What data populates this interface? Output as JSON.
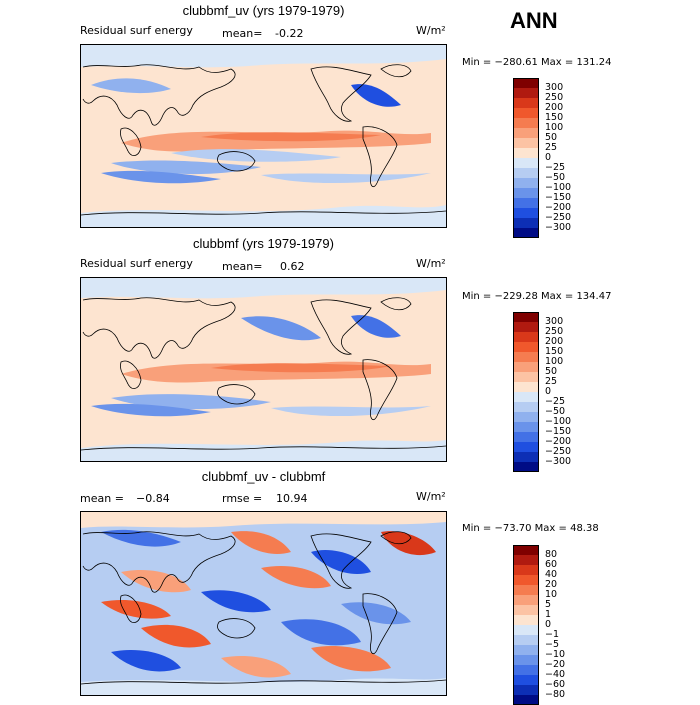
{
  "header": {
    "season": "ANN"
  },
  "panels": [
    {
      "title": "clubbmf_uv (yrs 1979-1979)",
      "label": "Residual surf energy",
      "mean_label": "mean=",
      "mean_value": "-0.22",
      "rmse_label": "",
      "rmse_value": "",
      "units": "W/m²",
      "range_text": "Min = −280.61  Max = 131.24",
      "colorbar_ticks": [
        "300",
        "250",
        "200",
        "150",
        "100",
        "50",
        "25",
        "0",
        "−25",
        "−50",
        "−100",
        "−150",
        "−200",
        "−250",
        "−300"
      ],
      "colors": [
        "#7f0000",
        "#b01a10",
        "#d9381a",
        "#f0582c",
        "#f57c50",
        "#f9a07a",
        "#fcc3a4",
        "#fde4d0",
        "#d9e7f7",
        "#b6cdf2",
        "#90b1ee",
        "#6a93ea",
        "#4371e6",
        "#1f4fe0",
        "#0d2fb5",
        "#000c85"
      ]
    },
    {
      "title": "clubbmf (yrs 1979-1979)",
      "label": "Residual surf energy",
      "mean_label": "mean=",
      "mean_value": "0.62",
      "rmse_label": "",
      "rmse_value": "",
      "units": "W/m²",
      "range_text": "Min = −229.28  Max = 134.47",
      "colorbar_ticks": [
        "300",
        "250",
        "200",
        "150",
        "100",
        "50",
        "25",
        "0",
        "−25",
        "−50",
        "−100",
        "−150",
        "−200",
        "−250",
        "−300"
      ],
      "colors": [
        "#7f0000",
        "#b01a10",
        "#d9381a",
        "#f0582c",
        "#f57c50",
        "#f9a07a",
        "#fcc3a4",
        "#fde4d0",
        "#d9e7f7",
        "#b6cdf2",
        "#90b1ee",
        "#6a93ea",
        "#4371e6",
        "#1f4fe0",
        "#0d2fb5",
        "#000c85"
      ]
    },
    {
      "title": "clubbmf_uv - clubbmf",
      "label": "",
      "mean_label": "mean =",
      "mean_value": "−0.84",
      "rmse_label": "rmse =",
      "rmse_value": "10.94",
      "units": "W/m²",
      "range_text": "Min = −73.70  Max =   48.38",
      "colorbar_ticks": [
        "80",
        "60",
        "40",
        "20",
        "10",
        "5",
        "1",
        "0",
        "−1",
        "−5",
        "−10",
        "−20",
        "−40",
        "−60",
        "−80"
      ],
      "colors": [
        "#7f0000",
        "#b01a10",
        "#d9381a",
        "#f0582c",
        "#f57c50",
        "#f9a07a",
        "#fcc3a4",
        "#fde4d0",
        "#d9e7f7",
        "#b6cdf2",
        "#90b1ee",
        "#6a93ea",
        "#4371e6",
        "#1f4fe0",
        "#0d2fb5",
        "#000c85"
      ]
    }
  ]
}
